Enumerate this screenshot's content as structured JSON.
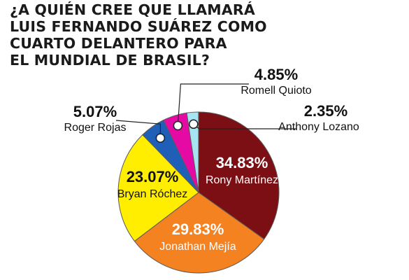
{
  "title_lines": [
    "¿A QUIÉN CREE QUE LLAMARÁ",
    "LUIS FERNANDO SUÁREZ COMO",
    "CUARTO DELANTERO PARA",
    "EL MUNDIAL DE BRASIL?"
  ],
  "chart_data": {
    "type": "pie",
    "title": "¿A QUIÉN CREE QUE LLAMARÁ LUIS FERNANDO SUÁREZ COMO CUARTO DELANTERO PARA EL MUNDIAL DE BRASIL?",
    "slices": [
      {
        "label": "Rony Martínez",
        "value": 34.83,
        "value_label": "34.83%",
        "color": "#7b0f14",
        "label_placement": "inside"
      },
      {
        "label": "Jonathan Mejía",
        "value": 29.83,
        "value_label": "29.83%",
        "color": "#f58220",
        "label_placement": "inside"
      },
      {
        "label": "Bryan Róchez",
        "value": 23.07,
        "value_label": "23.07%",
        "color": "#ffee00",
        "label_placement": "inside"
      },
      {
        "label": "Roger Rojas",
        "value": 5.07,
        "value_label": "5.07%",
        "color": "#1f5fb8",
        "label_placement": "outside"
      },
      {
        "label": "Romell Quioto",
        "value": 4.85,
        "value_label": "4.85%",
        "color": "#e60aa5",
        "label_placement": "outside"
      },
      {
        "label": "Anthony Lozano",
        "value": 2.35,
        "value_label": "2.35%",
        "color": "#a6e4f2",
        "label_placement": "outside"
      }
    ]
  }
}
